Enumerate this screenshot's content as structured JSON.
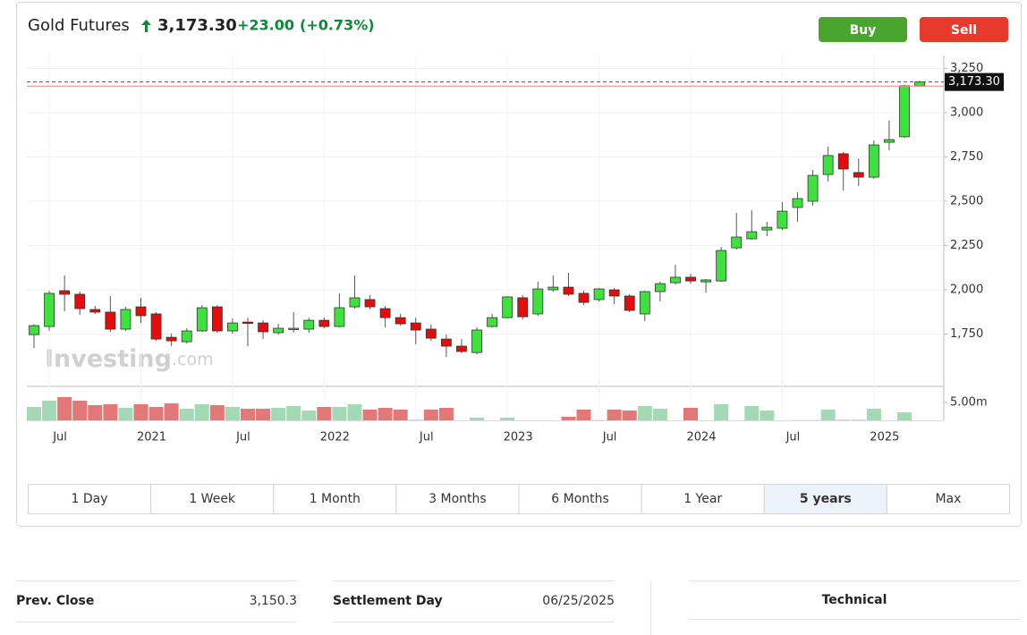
{
  "header": {
    "title": "Gold Futures",
    "price": "3,173.30",
    "change": "+23.00",
    "change_pct": "(+0.73%)"
  },
  "buttons": [
    "Buy",
    "Sell"
  ],
  "ranges": [
    "1 Day",
    "1 Week",
    "1 Month",
    "3 Months",
    "6 Months",
    "1 Year",
    "5 years",
    "Max"
  ],
  "active_range": 6,
  "watermark": {
    "brand": "Investing",
    "suffix": ".com"
  },
  "chart_data": {
    "type": "candlestick",
    "categories": [
      null,
      "Jul",
      null,
      null,
      null,
      null,
      null,
      "2021",
      null,
      null,
      null,
      null,
      null,
      "Jul",
      null,
      null,
      null,
      null,
      null,
      "2022",
      null,
      null,
      null,
      null,
      null,
      "Jul",
      null,
      null,
      null,
      null,
      null,
      "2023",
      null,
      null,
      null,
      null,
      null,
      "Jul",
      null,
      null,
      null,
      null,
      null,
      "2024",
      null,
      null,
      null,
      null,
      null,
      "Jul",
      null,
      null,
      null,
      null,
      null,
      "2025",
      null,
      null,
      null
    ],
    "open": [
      1747,
      1793,
      1995,
      1975,
      1889,
      1874,
      1778,
      1904,
      1864,
      1732,
      1707,
      1768,
      1904,
      1768,
      1818,
      1813,
      1758,
      1778,
      1778,
      1828,
      1793,
      1904,
      1945,
      1894,
      1843,
      1813,
      1778,
      1722,
      1682,
      1646,
      1793,
      1843,
      1955,
      1864,
      2000,
      2015,
      1980,
      1945,
      2000,
      1965,
      1864,
      1990,
      2040,
      2071,
      2045,
      2050,
      2237,
      2288,
      2338,
      2348,
      2465,
      2500,
      2651,
      2768,
      2662,
      2636,
      2833,
      2864,
      3150.3
    ],
    "high": [
      1805,
      1995,
      2081,
      1990,
      1909,
      1965,
      1904,
      1955,
      1874,
      1753,
      1783,
      1914,
      1914,
      1838,
      1843,
      1828,
      1808,
      1874,
      1843,
      1843,
      1980,
      2081,
      1970,
      1909,
      1864,
      1843,
      1803,
      1747,
      1722,
      1788,
      1864,
      1965,
      1970,
      2045,
      2081,
      2096,
      1995,
      2010,
      2010,
      1975,
      1995,
      2045,
      2141,
      2091,
      2061,
      2242,
      2434,
      2449,
      2384,
      2495,
      2550,
      2677,
      2808,
      2778,
      2742,
      2843,
      2955,
      3157,
      3180
    ],
    "low": [
      1672,
      1768,
      1879,
      1859,
      1864,
      1763,
      1768,
      1813,
      1712,
      1682,
      1697,
      1763,
      1758,
      1753,
      1682,
      1722,
      1747,
      1758,
      1758,
      1783,
      1788,
      1894,
      1889,
      1788,
      1798,
      1692,
      1712,
      1621,
      1642,
      1636,
      1788,
      1838,
      1833,
      1854,
      1990,
      1965,
      1914,
      1935,
      1919,
      1874,
      1823,
      1935,
      2030,
      2035,
      1985,
      2045,
      2227,
      2283,
      2303,
      2338,
      2384,
      2475,
      2611,
      2561,
      2586,
      2626,
      2788,
      2858,
      3148
    ],
    "close": [
      1798,
      1980,
      1975,
      1894,
      1874,
      1778,
      1889,
      1854,
      1722,
      1712,
      1768,
      1899,
      1768,
      1813,
      1813,
      1763,
      1783,
      1783,
      1828,
      1793,
      1899,
      1955,
      1904,
      1843,
      1808,
      1773,
      1727,
      1682,
      1652,
      1773,
      1843,
      1960,
      1848,
      2005,
      2015,
      1975,
      1929,
      2005,
      1965,
      1884,
      1990,
      2035,
      2071,
      2050,
      2056,
      2222,
      2298,
      2328,
      2353,
      2444,
      2515,
      2646,
      2758,
      2682,
      2636,
      2818,
      2848,
      3152,
      3173.3
    ],
    "volume": [
      3.75,
      5.5,
      6.5,
      5.5,
      4.25,
      4.5,
      3.5,
      4.5,
      3.75,
      4.75,
      3.25,
      4.5,
      4.25,
      3.75,
      3.25,
      3.25,
      3.5,
      4,
      2.75,
      3.75,
      3.75,
      4.5,
      3,
      3.5,
      3,
      0.1,
      3,
      3.5,
      null,
      0.75,
      null,
      0.75,
      null,
      null,
      null,
      1,
      3,
      0.1,
      3,
      2.75,
      4,
      3.25,
      null,
      3.5,
      null,
      4.5,
      null,
      4,
      2.75,
      null,
      0.1,
      0.1,
      3,
      0.1,
      0.1,
      3.25,
      null,
      2.25,
      null
    ],
    "up_color": "#3ee13e",
    "down_color": "#e30d0d",
    "volume_up_color": "#a3d9b4",
    "volume_down_color": "#e27878",
    "ylim": [
      1455,
      3323
    ],
    "yticks": [
      {
        "value": 1750,
        "label": "1,750"
      },
      {
        "value": 2000,
        "label": "2,000"
      },
      {
        "value": 2250,
        "label": "2,250"
      },
      {
        "value": 2500,
        "label": "2,500"
      },
      {
        "value": 2750,
        "label": "2,750"
      },
      {
        "value": 3000,
        "label": "3,000"
      },
      {
        "value": 3250,
        "label": "3,250"
      }
    ],
    "volume_ylim": [
      0,
      9.5
    ],
    "volume_yticks": [
      {
        "value": 5,
        "label": "5.00m"
      }
    ],
    "last_price": {
      "value": 3173.3,
      "label": "3,173.30"
    },
    "reference_line": 3150.3
  },
  "info": [
    {
      "label": "Prev. Close",
      "value": "3,150.3"
    },
    {
      "label": "Settlement Day",
      "value": "06/25/2025"
    }
  ],
  "technical": "Technical"
}
